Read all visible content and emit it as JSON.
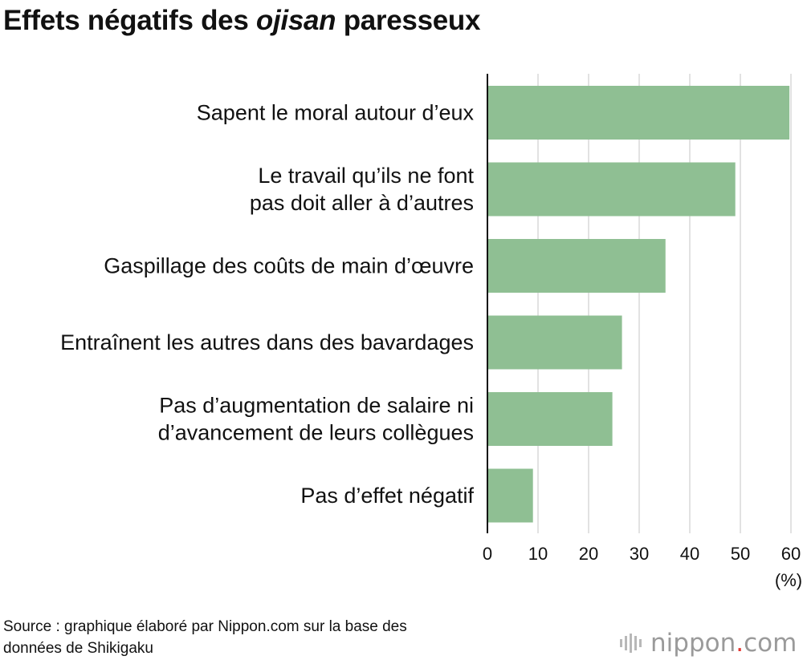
{
  "title": {
    "prefix": "Effets négatifs des ",
    "italic": "ojisan",
    "suffix": " paresseux"
  },
  "chart_data": {
    "type": "bar",
    "orientation": "horizontal",
    "categories": [
      [
        "Sapent le moral autour d’eux"
      ],
      [
        "Le travail qu’ils ne font",
        "pas doit aller à d’autres"
      ],
      [
        "Gaspillage des coûts de main d’œuvre"
      ],
      [
        "Entraînent les autres dans des bavardages"
      ],
      [
        "Pas d’augmentation de salaire ni",
        "d’avancement de leurs collègues"
      ],
      [
        "Pas d’effet négatif"
      ]
    ],
    "values": [
      59.7,
      49.0,
      35.2,
      26.6,
      24.7,
      9.0
    ],
    "xlim": [
      0,
      60
    ],
    "xticks": [
      0,
      10,
      20,
      30,
      40,
      50,
      60
    ],
    "xlabel": "(%)",
    "grid": true,
    "bar_color": "#8fbf93"
  },
  "source": {
    "line1": "Source : graphique élaboré par Nippon.com sur la base des",
    "line2": "données de Shikigaku"
  },
  "logo": {
    "name": "nippon",
    "dot": ".",
    "tld": "com"
  }
}
